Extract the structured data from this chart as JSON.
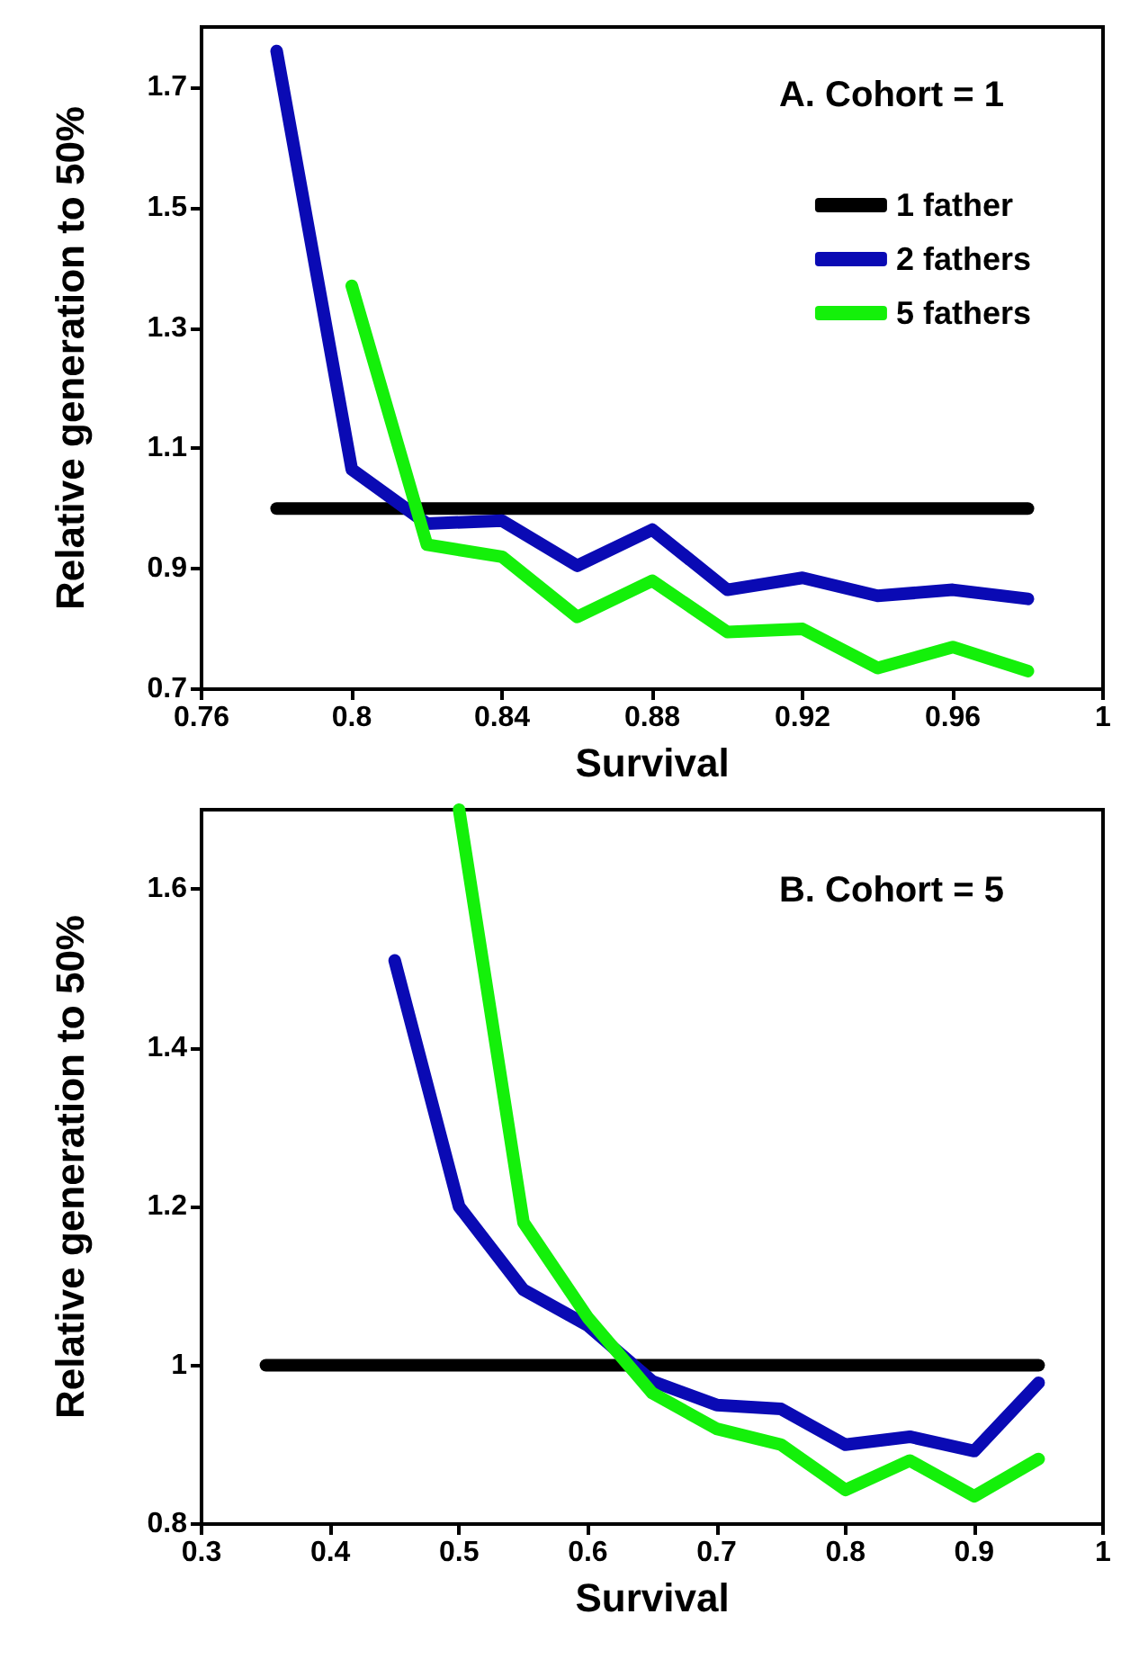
{
  "chart_data": [
    {
      "type": "line",
      "title": "A. Cohort = 1",
      "xlabel": "Survival",
      "ylabel": "Relative generation to 50%",
      "xlim": [
        0.76,
        1
      ],
      "xticks": [
        0.76,
        0.8,
        0.84,
        0.88,
        0.92,
        0.96,
        1
      ],
      "ylim": [
        0.7,
        1.8
      ],
      "yticks": [
        0.7,
        0.9,
        1.1,
        1.3,
        1.5,
        1.7
      ],
      "grid": false,
      "marker": "none",
      "line_style": "solid",
      "legend": "top right",
      "series": [
        {
          "name": "1 father",
          "color": "#000000",
          "x": [
            0.78,
            0.98
          ],
          "values": [
            1,
            1
          ]
        },
        {
          "name": "2 fathers",
          "color": "#0a0ab4",
          "x": [
            0.78,
            0.8,
            0.82,
            0.84,
            0.86,
            0.88,
            0.9,
            0.92,
            0.94,
            0.96,
            0.98
          ],
          "values": [
            1.76,
            1.065,
            0.975,
            0.98,
            0.905,
            0.965,
            0.865,
            0.885,
            0.855,
            0.865,
            0.85
          ]
        },
        {
          "name": "5 fathers",
          "color": "#14f00a",
          "x": [
            0.8,
            0.82,
            0.84,
            0.86,
            0.88,
            0.9,
            0.92,
            0.94,
            0.96,
            0.98
          ],
          "values": [
            1.37,
            0.94,
            0.92,
            0.82,
            0.88,
            0.795,
            0.8,
            0.735,
            0.77,
            0.73
          ]
        }
      ]
    },
    {
      "type": "line",
      "title": "B. Cohort = 5",
      "xlabel": "Survival",
      "ylabel": "Relative generation to 50%",
      "xlim": [
        0.3,
        1
      ],
      "xticks": [
        0.3,
        0.4,
        0.5,
        0.6,
        0.7,
        0.8,
        0.9,
        1
      ],
      "ylim": [
        0.8,
        1.7
      ],
      "yticks": [
        0.8,
        1,
        1.2,
        1.4,
        1.6
      ],
      "grid": false,
      "marker": "none",
      "line_style": "solid",
      "series": [
        {
          "color": "#000000",
          "x": [
            0.35,
            0.95
          ],
          "values": [
            1,
            1
          ]
        },
        {
          "color": "#0a0ab4",
          "x": [
            0.45,
            0.5,
            0.55,
            0.6,
            0.65,
            0.7,
            0.75,
            0.8,
            0.85,
            0.9,
            0.95
          ],
          "values": [
            1.51,
            1.2,
            1.095,
            1.05,
            0.98,
            0.95,
            0.945,
            0.9,
            0.91,
            0.892,
            0.978
          ]
        },
        {
          "color": "#14f00a",
          "x": [
            0.5,
            0.55,
            0.6,
            0.65,
            0.7,
            0.75,
            0.8,
            0.85,
            0.9,
            0.95
          ],
          "values": [
            1.7,
            1.18,
            1.06,
            0.965,
            0.92,
            0.9,
            0.843,
            0.88,
            0.835,
            0.882
          ]
        }
      ]
    }
  ]
}
